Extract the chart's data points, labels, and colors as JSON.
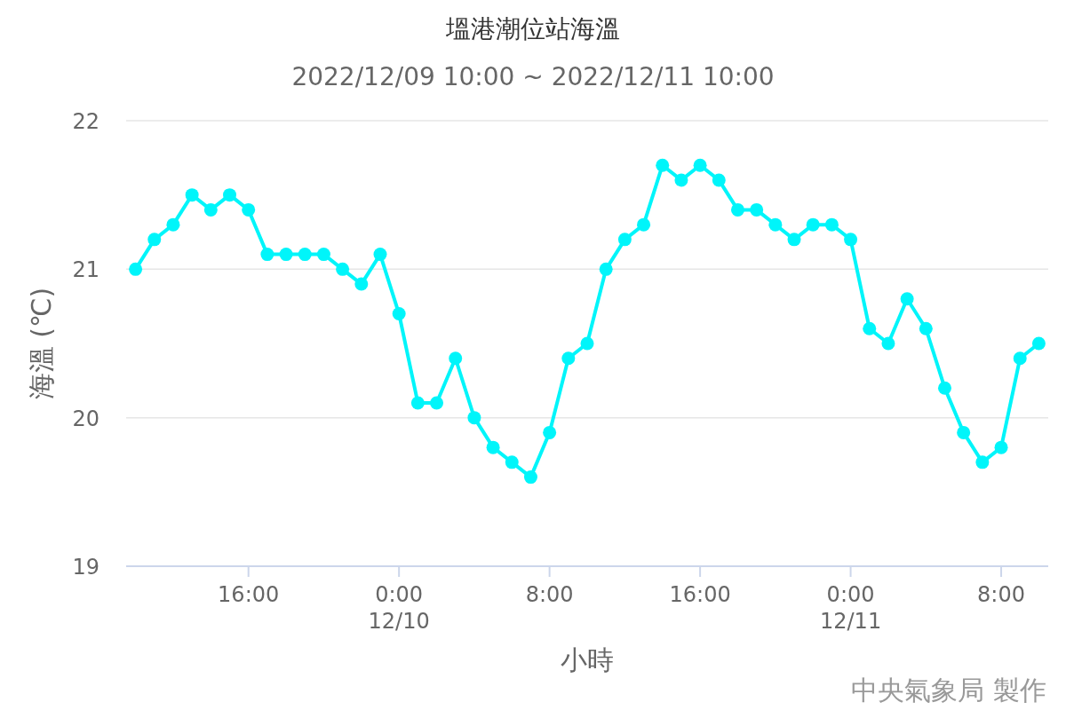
{
  "chart_data": {
    "type": "line",
    "title": "塭港潮位站海溫",
    "subtitle": "2022/12/09 10:00 ~ 2022/12/11 10:00",
    "xlabel": "小時",
    "ylabel": "海溫 (℃)",
    "annotations": [
      "中央氣象局 製作"
    ],
    "x": [
      "2022-12-09T10:00",
      "2022-12-09T11:00",
      "2022-12-09T12:00",
      "2022-12-09T13:00",
      "2022-12-09T14:00",
      "2022-12-09T15:00",
      "2022-12-09T16:00",
      "2022-12-09T17:00",
      "2022-12-09T18:00",
      "2022-12-09T19:00",
      "2022-12-09T20:00",
      "2022-12-09T21:00",
      "2022-12-09T22:00",
      "2022-12-09T23:00",
      "2022-12-10T00:00",
      "2022-12-10T01:00",
      "2022-12-10T02:00",
      "2022-12-10T03:00",
      "2022-12-10T04:00",
      "2022-12-10T05:00",
      "2022-12-10T06:00",
      "2022-12-10T07:00",
      "2022-12-10T08:00",
      "2022-12-10T09:00",
      "2022-12-10T10:00",
      "2022-12-10T11:00",
      "2022-12-10T12:00",
      "2022-12-10T13:00",
      "2022-12-10T14:00",
      "2022-12-10T15:00",
      "2022-12-10T16:00",
      "2022-12-10T17:00",
      "2022-12-10T18:00",
      "2022-12-10T19:00",
      "2022-12-10T20:00",
      "2022-12-10T21:00",
      "2022-12-10T22:00",
      "2022-12-10T23:00",
      "2022-12-11T00:00",
      "2022-12-11T01:00",
      "2022-12-11T02:00",
      "2022-12-11T03:00",
      "2022-12-11T04:00",
      "2022-12-11T05:00",
      "2022-12-11T06:00",
      "2022-12-11T07:00",
      "2022-12-11T08:00",
      "2022-12-11T09:00",
      "2022-12-11T10:00"
    ],
    "series": [
      {
        "color": "#00f5fa",
        "values": [
          21.0,
          21.2,
          21.3,
          21.5,
          21.4,
          21.5,
          21.4,
          21.1,
          21.1,
          21.1,
          21.1,
          21.0,
          20.9,
          21.1,
          20.7,
          20.1,
          20.1,
          20.4,
          20.0,
          19.8,
          19.7,
          19.6,
          19.9,
          20.4,
          20.5,
          21.0,
          21.2,
          21.3,
          21.7,
          21.6,
          21.7,
          21.6,
          21.4,
          21.4,
          21.3,
          21.2,
          21.3,
          21.3,
          21.2,
          20.6,
          20.5,
          20.8,
          20.6,
          20.2,
          19.9,
          19.7,
          19.8,
          20.4,
          20.5
        ]
      }
    ],
    "xlim": [
      "2022-12-09T09:30",
      "2022-12-11T10:30"
    ],
    "xticks": [
      {
        "value": "2022-12-09T16:00",
        "label": "16:00"
      },
      {
        "value": "2022-12-10T00:00",
        "label": "0:00\n12/10"
      },
      {
        "value": "2022-12-10T08:00",
        "label": "8:00"
      },
      {
        "value": "2022-12-10T16:00",
        "label": "16:00"
      },
      {
        "value": "2022-12-11T00:00",
        "label": "0:00\n12/11"
      },
      {
        "value": "2022-12-11T08:00",
        "label": "8:00"
      }
    ],
    "ylim": [
      19,
      22
    ],
    "yticks": [
      19,
      20,
      21,
      22
    ],
    "grid": "y",
    "marker": "circle",
    "line_style": "solid"
  }
}
